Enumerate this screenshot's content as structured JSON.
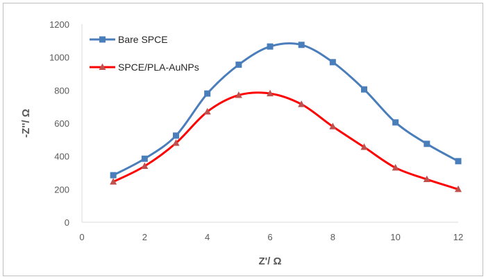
{
  "chart_data": {
    "type": "line",
    "xlabel": "Z'/ Ω",
    "ylabel": "-Z''/ Ω",
    "xlim": [
      0,
      12
    ],
    "ylim": [
      0,
      1200
    ],
    "xticks": [
      0,
      2,
      4,
      6,
      8,
      10,
      12
    ],
    "yticks": [
      0,
      200,
      400,
      600,
      800,
      1000,
      1200
    ],
    "grid": false,
    "legend_position": "top-left",
    "series": [
      {
        "name": "Bare SPCE",
        "color": "#4a7ebb",
        "marker": "square",
        "smooth": true,
        "x": [
          1,
          2,
          3,
          4,
          5,
          6,
          7,
          8,
          9,
          10,
          11,
          12
        ],
        "y": [
          285,
          385,
          525,
          780,
          955,
          1065,
          1075,
          970,
          805,
          605,
          475,
          370
        ]
      },
      {
        "name": "SPCE/PLA-AuNPs",
        "color": "#ff0000",
        "marker_color": "#c0504d",
        "marker": "triangle",
        "smooth": true,
        "x": [
          1,
          2,
          3,
          4,
          5,
          6,
          7,
          8,
          9,
          10,
          11,
          12
        ],
        "y": [
          245,
          340,
          480,
          670,
          770,
          780,
          715,
          580,
          455,
          330,
          260,
          200
        ]
      }
    ]
  }
}
